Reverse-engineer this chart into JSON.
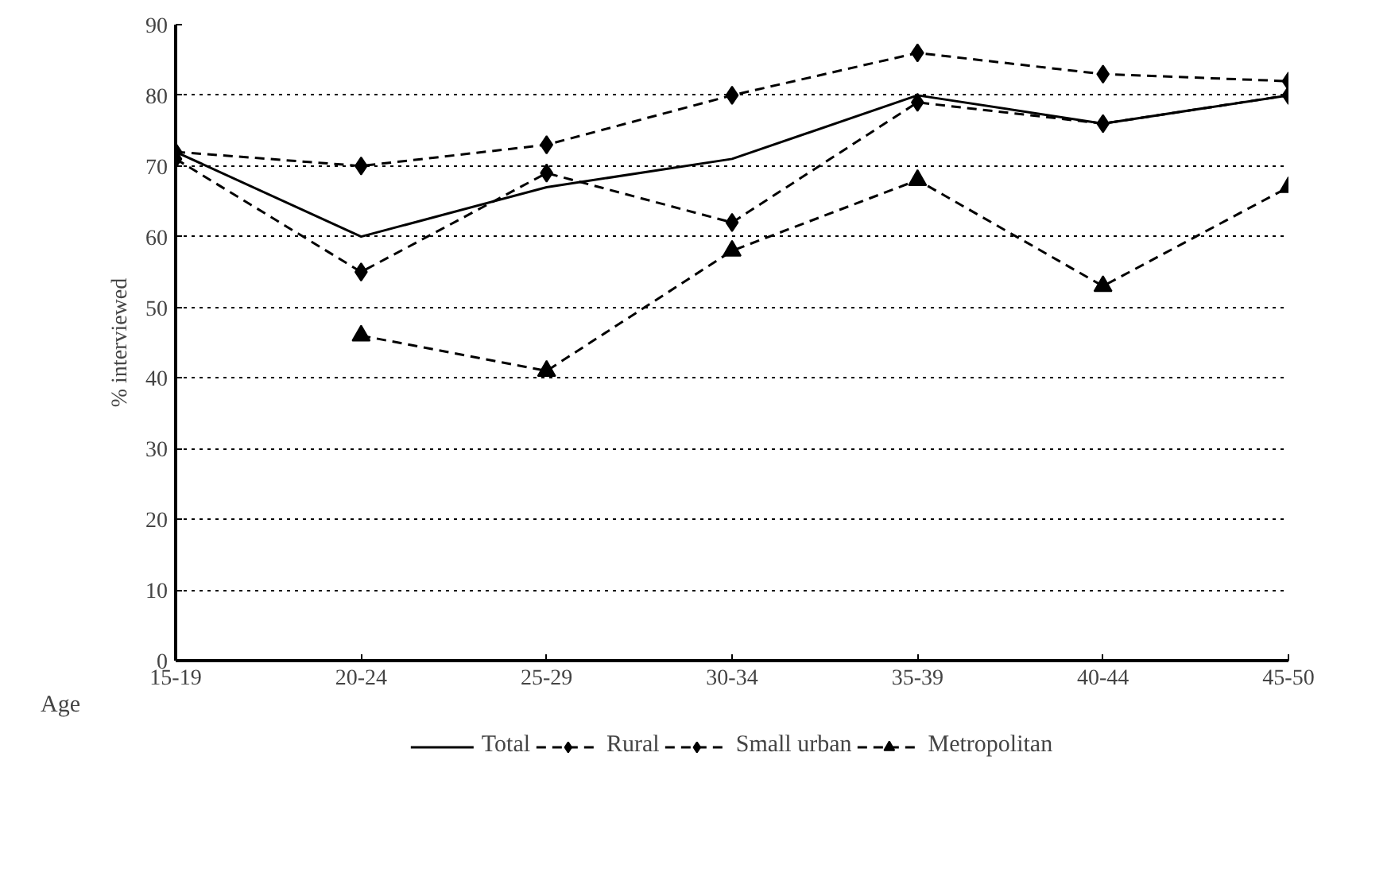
{
  "chart_data": {
    "type": "line",
    "xlabel": "Age",
    "ylabel": "% interviewed",
    "categories": [
      "15-19",
      "20-24",
      "25-29",
      "30-34",
      "35-39",
      "40-44",
      "45-50"
    ],
    "ylim": [
      0,
      90
    ],
    "yticks": [
      0,
      10,
      20,
      30,
      40,
      50,
      60,
      70,
      80,
      90
    ],
    "grid": "y",
    "legend": "bottom",
    "series": [
      {
        "name": "Total",
        "color": "#000000",
        "line_style": "solid",
        "marker": "none",
        "values": [
          72,
          60,
          67,
          71,
          80,
          76,
          80
        ]
      },
      {
        "name": "Rural",
        "color": "#000000",
        "line_style": "dashed",
        "marker": "diamond",
        "values": [
          72,
          70,
          73,
          80,
          86,
          83,
          82
        ]
      },
      {
        "name": "Small urban",
        "color": "#000000",
        "line_style": "dashed",
        "marker": "diamond",
        "values": [
          71,
          55,
          69,
          62,
          79,
          76,
          80
        ]
      },
      {
        "name": "Metropolitan",
        "color": "#000000",
        "line_style": "dashed",
        "marker": "triangle",
        "values": [
          null,
          46,
          41,
          58,
          68,
          53,
          67
        ]
      }
    ]
  }
}
